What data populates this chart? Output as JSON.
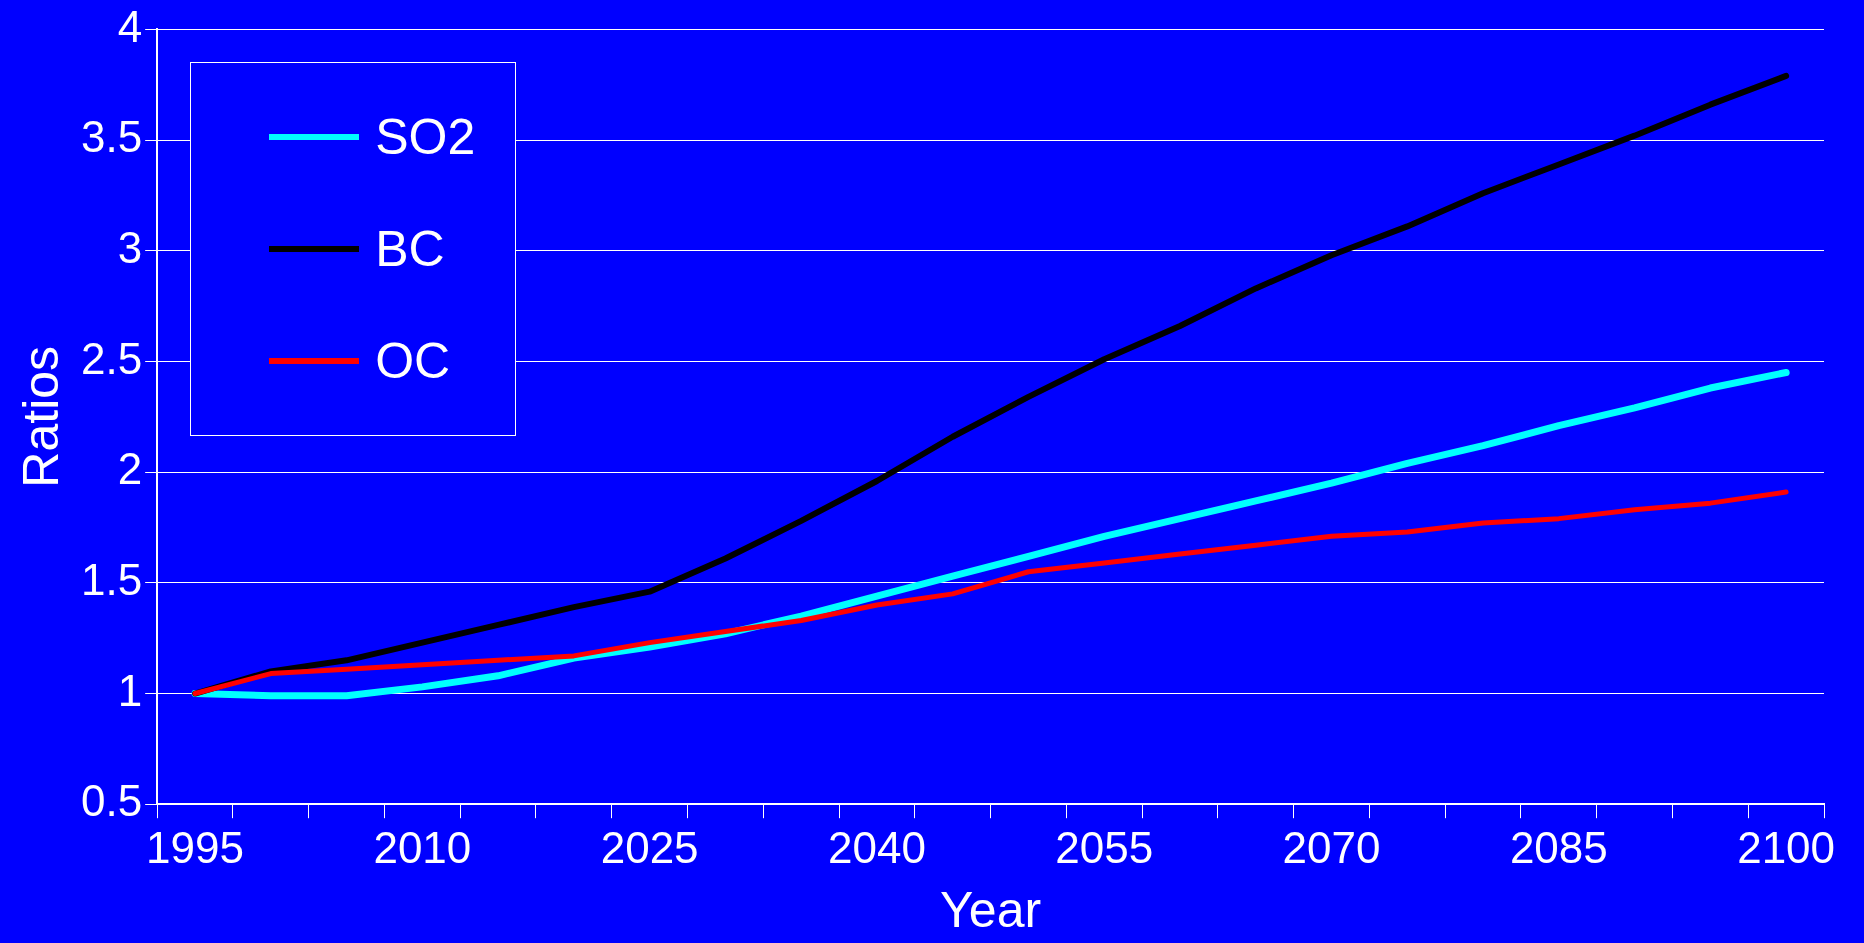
{
  "chart_data": {
    "type": "line",
    "xlabel": "Year",
    "ylabel": "Ratios",
    "categories": [
      "1995",
      null,
      null,
      "2010",
      null,
      null,
      "2025",
      null,
      null,
      "2040",
      null,
      null,
      "2055",
      null,
      null,
      "2070",
      null,
      null,
      "2085",
      null,
      null,
      "2100"
    ],
    "series": [
      {
        "name": "SO2",
        "color": "#00ffff",
        "values": [
          1.0,
          0.99,
          0.99,
          1.03,
          1.08,
          1.16,
          1.21,
          1.27,
          1.35,
          1.44,
          1.53,
          1.62,
          1.71,
          1.79,
          1.87,
          1.95,
          2.04,
          2.12,
          2.21,
          2.29,
          2.38,
          2.45
        ]
      },
      {
        "name": "BC",
        "color": "#000000",
        "values": [
          1.0,
          1.1,
          1.15,
          1.23,
          1.31,
          1.39,
          1.46,
          1.61,
          1.78,
          1.96,
          2.16,
          2.34,
          2.51,
          2.66,
          2.83,
          2.98,
          3.11,
          3.26,
          3.39,
          3.52,
          3.66,
          3.79
        ]
      },
      {
        "name": "OC",
        "color": "#ff0000",
        "values": [
          1.0,
          1.09,
          1.11,
          1.13,
          1.15,
          1.17,
          1.23,
          1.28,
          1.33,
          1.4,
          1.45,
          1.55,
          1.59,
          1.63,
          1.67,
          1.71,
          1.73,
          1.77,
          1.79,
          1.83,
          1.86,
          1.91
        ]
      }
    ],
    "ylim": [
      0.5,
      4
    ],
    "yticks": [
      0.5,
      1,
      1.5,
      2,
      2.5,
      3,
      3.5,
      4
    ],
    "grid": "y",
    "legend": "top left",
    "marker": "none",
    "line_style": "solid"
  }
}
